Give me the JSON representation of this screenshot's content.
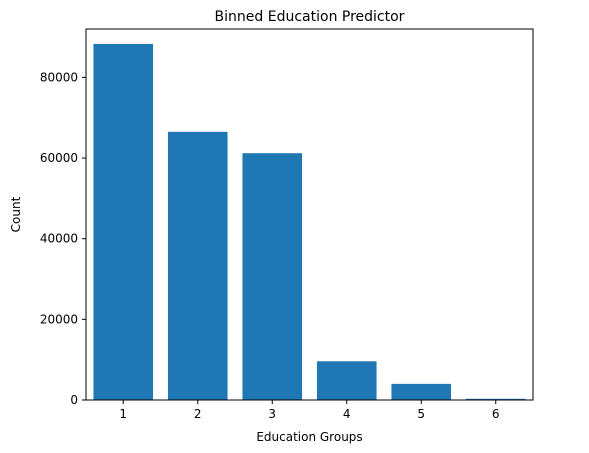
{
  "chart_data": {
    "type": "bar",
    "title": "Binned Education Predictor",
    "xlabel": "Education Groups",
    "ylabel": "Count",
    "categories": [
      "1",
      "2",
      "3",
      "4",
      "5",
      "6"
    ],
    "x": [
      1,
      2,
      3,
      4,
      5,
      6
    ],
    "values": [
      88300,
      66500,
      61200,
      9600,
      4000,
      300
    ],
    "xlim": [
      0.5,
      6.5
    ],
    "ylim": [
      0,
      92000
    ],
    "yticks": [
      0,
      20000,
      40000,
      60000,
      80000
    ],
    "ytick_labels": [
      "0",
      "20000",
      "40000",
      "60000",
      "80000"
    ],
    "grid": false,
    "legend": "none",
    "bar_color": "#1f77b4"
  }
}
